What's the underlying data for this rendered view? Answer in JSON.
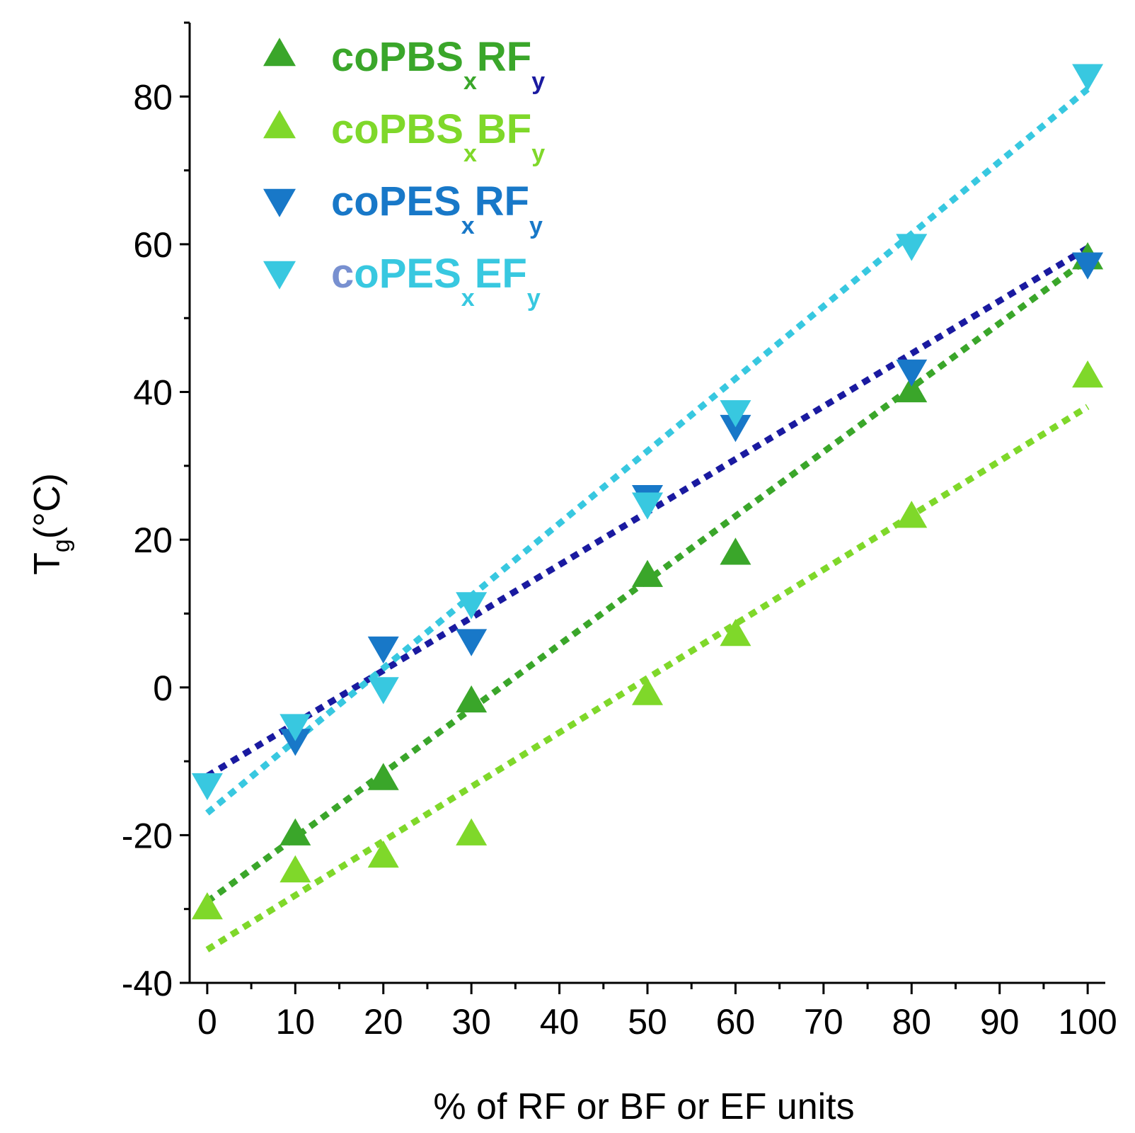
{
  "chart_data": {
    "type": "scatter",
    "title": "",
    "xlabel": "% of RF or BF or EF  units",
    "ylabel": {
      "main": "T",
      "sub": "g",
      "rest": "(°C)"
    },
    "xlim": [
      -2,
      102
    ],
    "ylim": [
      -40,
      90
    ],
    "x_ticks": [
      "0",
      "10",
      "20",
      "30",
      "40",
      "50",
      "60",
      "70",
      "80",
      "90",
      "100"
    ],
    "y_ticks": [
      "-40",
      "-20",
      "0",
      "20",
      "40",
      "60",
      "80"
    ],
    "grid": false,
    "legend_position": "top-left",
    "series": [
      {
        "name": "coPBSxRFy",
        "legend": {
          "part1": "coPBS",
          "sub1": "x",
          "part2": "RF",
          "sub2": "y"
        },
        "marker": "triangle-up",
        "color": "#3aa62a",
        "text_color": "#3aa62a",
        "sub2_color": "#1a1aa0",
        "x": [
          10,
          20,
          30,
          50,
          60,
          80,
          100
        ],
        "y": [
          -20,
          -12.5,
          -2,
          15,
          18,
          40,
          58
        ],
        "fit": {
          "x": [
            0,
            100
          ],
          "y": [
            -29,
            58
          ],
          "color": "#3aa62a"
        }
      },
      {
        "name": "coPBSxBFy",
        "legend": {
          "part1": "coPBS",
          "sub1": "x",
          "part2": "BF",
          "sub2": "y"
        },
        "marker": "triangle-up",
        "color": "#7fd82a",
        "text_color": "#7fd82a",
        "sub2_color": "#7fd82a",
        "x": [
          0,
          10,
          20,
          30,
          50,
          60,
          80,
          100
        ],
        "y": [
          -30,
          -25,
          -23,
          -20,
          -1,
          7,
          23,
          42
        ],
        "fit": {
          "x": [
            0,
            100
          ],
          "y": [
            -35.5,
            38
          ],
          "color": "#7fd82a"
        }
      },
      {
        "name": "coPESxRFy",
        "legend": {
          "part1": "coPES",
          "sub1": "x",
          "part2": "RF",
          "sub2": "y"
        },
        "marker": "triangle-down",
        "color": "#1878c8",
        "text_color": "#1878c8",
        "sub2_color": "#1878c8",
        "x": [
          10,
          20,
          30,
          50,
          60,
          80,
          100
        ],
        "y": [
          -7,
          5.5,
          6.5,
          26,
          35.5,
          43,
          57.5
        ],
        "fit": {
          "x": [
            0,
            100
          ],
          "y": [
            -12,
            59.5
          ],
          "color": "#1a1aa0"
        }
      },
      {
        "name": "coPESxEFy",
        "legend": {
          "part1": "coPES",
          "sub1": "x",
          "part2": "EF",
          "sub2": "y"
        },
        "marker": "triangle-down",
        "color": "#38c8e0",
        "text_color": "#38c8e0",
        "first_char_color": "#7890d0",
        "sub2_color": "#38c8e0",
        "x": [
          0,
          10,
          20,
          30,
          50,
          60,
          80,
          100
        ],
        "y": [
          -13,
          -5,
          0,
          11.5,
          25,
          37.5,
          60,
          83
        ],
        "fit": {
          "x": [
            0,
            100
          ],
          "y": [
            -17,
            81
          ],
          "color": "#38c8e0"
        }
      }
    ]
  }
}
